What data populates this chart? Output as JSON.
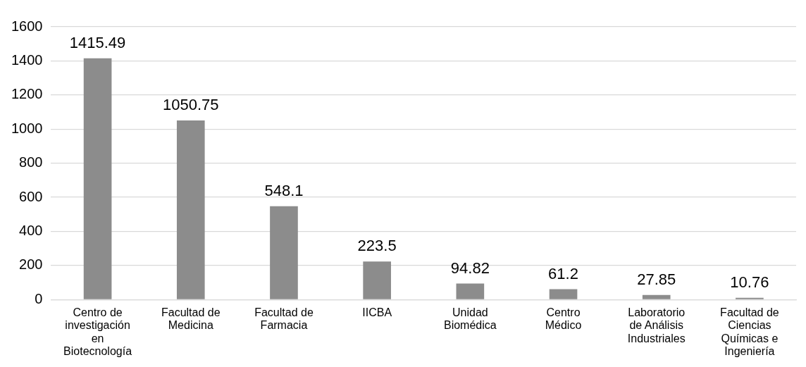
{
  "chart_data": {
    "type": "bar",
    "categories": [
      "Centro de investigación en Biotecnología",
      "Facultad de Medicina",
      "Facultad de Farmacia",
      "IICBA",
      "Unidad Biomédica",
      "Centro Médico",
      "Laboratorio de Análisis Industriales",
      "Facultad de Ciencias Químicas e Ingeniería"
    ],
    "values": [
      1415.49,
      1050.75,
      548.1,
      223.5,
      94.82,
      61.2,
      27.85,
      10.76
    ],
    "color": "#8c8c8c",
    "ylim": [
      0,
      1600
    ],
    "yticks": [
      0,
      200,
      400,
      600,
      800,
      1000,
      1200,
      1400,
      1600
    ],
    "grid": "y",
    "legend": false,
    "data_labels": true
  }
}
